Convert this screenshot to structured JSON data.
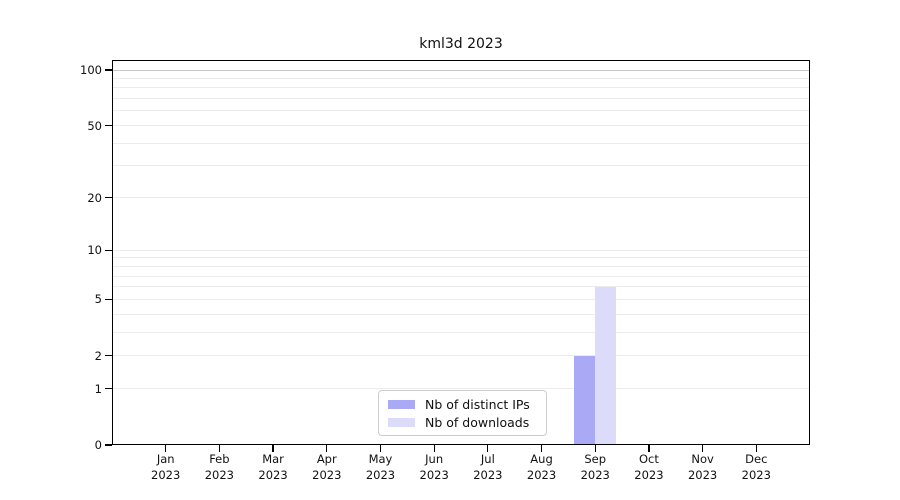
{
  "figure": {
    "title": "kml3d 2023"
  },
  "chart_data": {
    "type": "bar",
    "title": "kml3d 2023",
    "categories": [
      "Jan 2023",
      "Feb 2023",
      "Mar 2023",
      "Apr 2023",
      "May 2023",
      "Jun 2023",
      "Jul 2023",
      "Aug 2023",
      "Sep 2023",
      "Oct 2023",
      "Nov 2023",
      "Dec 2023"
    ],
    "x_months": [
      "Jan",
      "Feb",
      "Mar",
      "Apr",
      "May",
      "Jun",
      "Jul",
      "Aug",
      "Sep",
      "Oct",
      "Nov",
      "Dec"
    ],
    "x_year": "2023",
    "series": [
      {
        "name": "Nb of distinct IPs",
        "color": "#a9a9f5",
        "values": [
          0,
          0,
          0,
          0,
          0,
          0,
          0,
          0,
          2,
          0,
          0,
          0
        ]
      },
      {
        "name": "Nb of downloads",
        "color": "#dcdcfa",
        "values": [
          0,
          0,
          0,
          0,
          0,
          0,
          0,
          0,
          6,
          0,
          0,
          0
        ]
      }
    ],
    "y_axis": {
      "scale": "log1p",
      "major_ticks": [
        0,
        1,
        2,
        5,
        10,
        20,
        50,
        100
      ],
      "minor_ticks": [
        3,
        4,
        6,
        7,
        8,
        9,
        30,
        40,
        60,
        70,
        80,
        90
      ],
      "lim": [
        0,
        100
      ]
    },
    "xlabel": "",
    "ylabel": "",
    "grid": true,
    "legend_position": "lower center",
    "colors": {
      "grid_top_line": "#c8c8c8",
      "grid": "#ececec",
      "axis": "#000000",
      "background": "#ffffff"
    }
  }
}
